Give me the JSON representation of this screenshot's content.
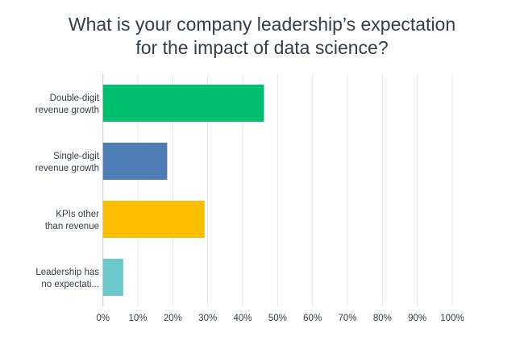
{
  "chart_data": {
    "type": "bar",
    "orientation": "horizontal",
    "title": [
      "What is your company leadership’s expectation",
      "for the impact of data science?"
    ],
    "categories": [
      [
        "Double-digit",
        "revenue growth"
      ],
      [
        "Single-digit",
        "revenue growth"
      ],
      [
        "KPIs other",
        "than revenue"
      ],
      [
        "Leadership has",
        "no expectati..."
      ]
    ],
    "values": [
      46.1,
      18.4,
      29.1,
      5.8
    ],
    "colors": [
      "#00bf6f",
      "#507cb6",
      "#f9be00",
      "#6bc8cd"
    ],
    "xlim": [
      0,
      100
    ],
    "ticks": [
      0,
      10,
      20,
      30,
      40,
      50,
      60,
      70,
      80,
      90,
      100
    ],
    "tick_labels": [
      "0%",
      "10%",
      "20%",
      "30%",
      "40%",
      "50%",
      "60%",
      "70%",
      "80%",
      "90%",
      "100%"
    ],
    "xlabel": "",
    "ylabel": "",
    "grid": "vertical",
    "legend": "none"
  }
}
